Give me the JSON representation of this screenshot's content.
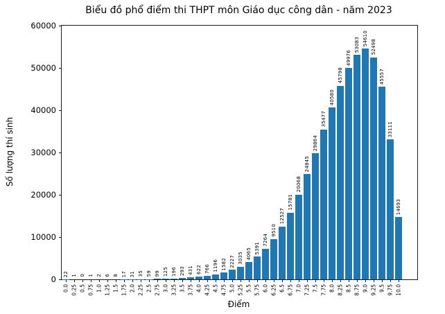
{
  "chart_data": {
    "type": "bar",
    "title": "Biểu đồ phổ điểm thi THPT môn Giáo dục công dân - năm 2023",
    "xlabel": "Điểm",
    "ylabel": "Số lượng thí sinh",
    "categories": [
      "0.0",
      "0.25",
      "0.5",
      "0.75",
      "1.0",
      "1.25",
      "1.5",
      "1.75",
      "2.0",
      "2.25",
      "2.5",
      "2.75",
      "3.0",
      "3.25",
      "3.5",
      "3.75",
      "4.0",
      "4.25",
      "4.5",
      "4.75",
      "5.0",
      "5.25",
      "5.5",
      "5.75",
      "6.0",
      "6.25",
      "6.5",
      "6.75",
      "7.0",
      "7.25",
      "7.5",
      "7.75",
      "8.0",
      "8.25",
      "8.5",
      "8.75",
      "9.0",
      "9.25",
      "9.5",
      "9.75",
      "10.0"
    ],
    "values": [
      22,
      1,
      0,
      1,
      2,
      6,
      8,
      17,
      31,
      35,
      59,
      99,
      125,
      196,
      293,
      431,
      622,
      766,
      1196,
      1582,
      2227,
      3035,
      4065,
      5391,
      7264,
      9510,
      12527,
      15781,
      20068,
      24845,
      29864,
      35477,
      40580,
      45798,
      49976,
      53083,
      54610,
      52498,
      45557,
      33111,
      14693
    ],
    "ylim": [
      0,
      60000
    ],
    "yticks": [
      0,
      10000,
      20000,
      30000,
      40000,
      50000,
      60000
    ],
    "bar_color": "#1f77b4",
    "bar_label_rotation": 90,
    "xtick_rotation": 90,
    "grid": "off",
    "legend": "none"
  }
}
